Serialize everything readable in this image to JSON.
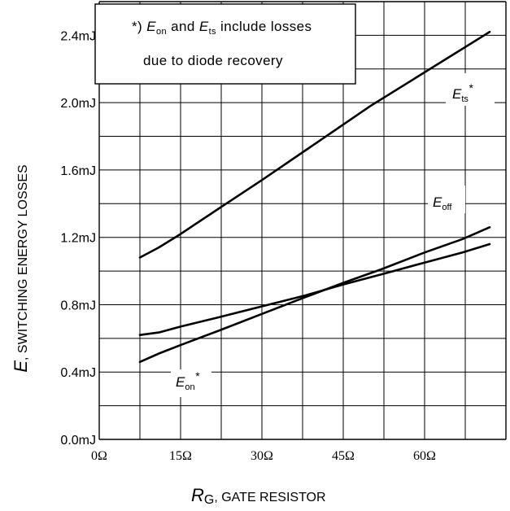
{
  "chart_data": {
    "type": "line",
    "title": "",
    "xlabel": {
      "symbol": "R",
      "subscript": "G",
      "text": ", GATE RESISTOR"
    },
    "ylabel": {
      "symbol": "E",
      "text": ", SWITCHING ENERGY LOSSES"
    },
    "xlim": [
      0,
      75
    ],
    "ylim": [
      0,
      2.6
    ],
    "grid": true,
    "x_ticks": [
      0,
      15,
      30,
      45,
      60
    ],
    "x_tick_labels": [
      "0Ω",
      "15Ω",
      "30Ω",
      "45Ω",
      "60Ω"
    ],
    "y_ticks": [
      0,
      0.4,
      0.8,
      1.2,
      1.6,
      2.0,
      2.4
    ],
    "y_tick_labels": [
      "0.0mJ",
      "0.4mJ",
      "0.8mJ",
      "1.2mJ",
      "1.6mJ",
      "2.0mJ",
      "2.4mJ"
    ],
    "series": [
      {
        "name": "ts",
        "label_symbol": "E",
        "label_sub": "ts",
        "label_star": "*",
        "x": [
          7.5,
          11,
          15,
          22,
          30,
          40,
          50,
          60,
          67,
          72
        ],
        "y": [
          1.08,
          1.14,
          1.22,
          1.37,
          1.54,
          1.76,
          1.98,
          2.18,
          2.32,
          2.42
        ]
      },
      {
        "name": "off",
        "label_symbol": "E",
        "label_sub": "off",
        "label_star": "",
        "x": [
          7.5,
          11,
          15,
          22,
          30,
          38,
          45,
          52,
          60,
          67,
          72
        ],
        "y": [
          0.62,
          0.635,
          0.67,
          0.725,
          0.79,
          0.855,
          0.92,
          0.98,
          1.05,
          1.11,
          1.16
        ]
      },
      {
        "name": "on",
        "label_symbol": "E",
        "label_sub": "on",
        "label_star": "*",
        "x": [
          7.5,
          11,
          15,
          22,
          30,
          38,
          45,
          52,
          60,
          67,
          72
        ],
        "y": [
          0.46,
          0.51,
          0.56,
          0.645,
          0.745,
          0.845,
          0.93,
          1.01,
          1.11,
          1.19,
          1.26
        ]
      }
    ],
    "annotation": {
      "line1_prefix": "*) ",
      "line1_sym1": "E",
      "line1_sub1": "on",
      "line1_mid": " and ",
      "line1_sym2": "E",
      "line1_sub2": "ts",
      "line1_suffix": " include losses",
      "line2": "due to diode recovery"
    }
  }
}
